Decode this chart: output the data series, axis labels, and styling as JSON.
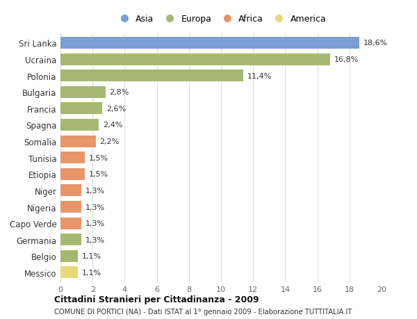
{
  "categories": [
    "Sri Lanka",
    "Ucraina",
    "Polonia",
    "Bulgaria",
    "Francia",
    "Spagna",
    "Somalia",
    "Tunisia",
    "Etiopia",
    "Niger",
    "Nigeria",
    "Capo Verde",
    "Germania",
    "Belgio",
    "Messico"
  ],
  "values": [
    18.6,
    16.8,
    11.4,
    2.8,
    2.6,
    2.4,
    2.2,
    1.5,
    1.5,
    1.3,
    1.3,
    1.3,
    1.3,
    1.1,
    1.1
  ],
  "labels": [
    "18,6%",
    "16,8%",
    "11,4%",
    "2,8%",
    "2,6%",
    "2,4%",
    "2,2%",
    "1,5%",
    "1,5%",
    "1,3%",
    "1,3%",
    "1,3%",
    "1,3%",
    "1,1%",
    "1,1%"
  ],
  "colors": [
    "#7b9fd4",
    "#a5b872",
    "#a5b872",
    "#a5b872",
    "#a5b872",
    "#a5b872",
    "#e8956a",
    "#e8956a",
    "#e8956a",
    "#e8956a",
    "#e8956a",
    "#e8956a",
    "#a5b872",
    "#a5b872",
    "#e8d87a"
  ],
  "legend_labels": [
    "Asia",
    "Europa",
    "Africa",
    "America"
  ],
  "legend_colors": [
    "#7b9fd4",
    "#a5b872",
    "#e8956a",
    "#e8d87a"
  ],
  "title": "Cittadini Stranieri per Cittadinanza - 2009",
  "subtitle": "COMUNE DI PORTICI (NA) - Dati ISTAT al 1° gennaio 2009 - Elaborazione TUTTITALIA.IT",
  "xlim": [
    0,
    20
  ],
  "xticks": [
    0,
    2,
    4,
    6,
    8,
    10,
    12,
    14,
    16,
    18,
    20
  ],
  "background_color": "#ffffff",
  "grid_color": "#dddddd",
  "bar_height": 0.72,
  "label_fontsize": 8,
  "ytick_fontsize": 8.5,
  "xtick_fontsize": 8
}
